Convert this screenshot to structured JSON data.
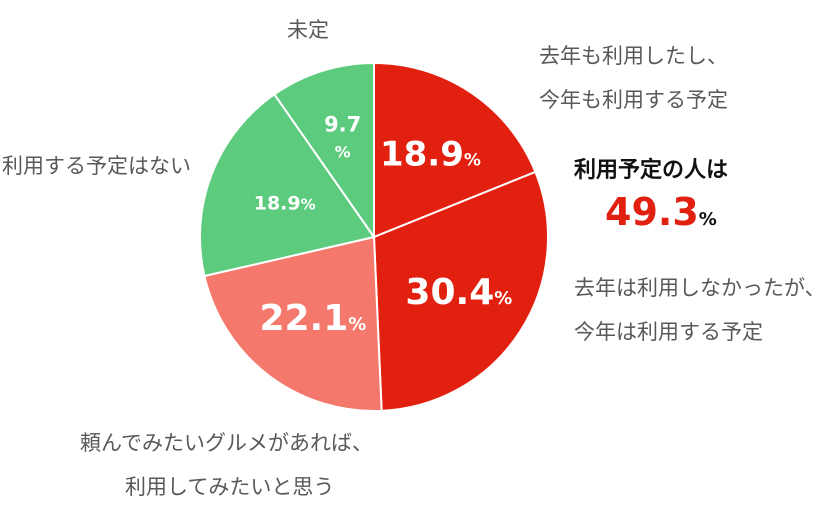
{
  "chart_data": {
    "type": "pie",
    "unit": "%",
    "slices": [
      {
        "label_lines": [
          "去年も利用したし、",
          "今年も利用する予定"
        ],
        "value": 18.9,
        "color": "#e2200f",
        "value_text": "18.9"
      },
      {
        "label_lines": [
          "去年は利用しなかったが、",
          "今年は利用する予定"
        ],
        "value": 30.4,
        "color": "#e2200f",
        "value_text": "30.4"
      },
      {
        "label_lines": [
          "頼んでみたいグルメがあれば、",
          "利用してみたいと思う"
        ],
        "value": 22.1,
        "color": "#f4786b",
        "value_text": "22.1"
      },
      {
        "label_lines": [
          "利用する予定はない"
        ],
        "value": 18.9,
        "color": "#5ccb7d",
        "value_text": "18.9"
      },
      {
        "label_lines": [
          "未定"
        ],
        "value": 9.7,
        "color": "#5ccb7d",
        "value_text": "9.7"
      }
    ]
  },
  "summary": {
    "heading": "利用予定の人は",
    "value": "49.3",
    "unit": "%"
  }
}
